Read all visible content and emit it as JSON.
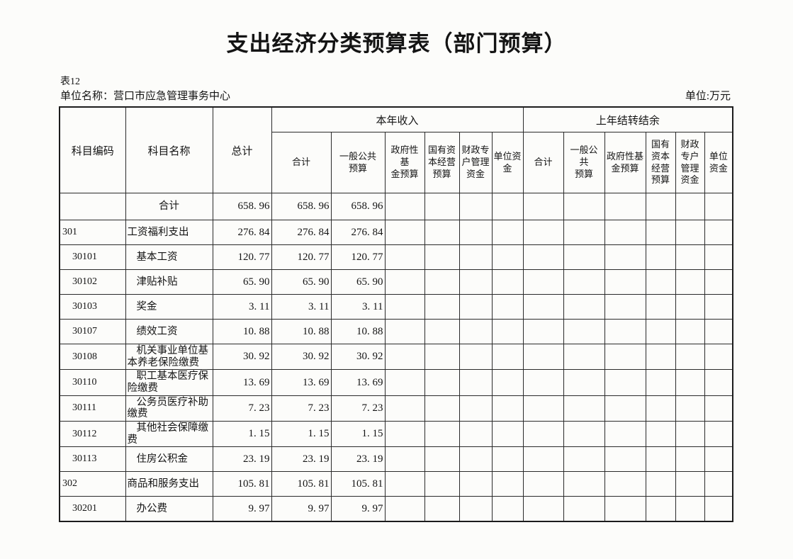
{
  "doc": {
    "title": "支出经济分类预算表（部门预算）",
    "table_no": "表12",
    "unit_name": "单位名称：营口市应急管理事务中心",
    "unit": "单位:万元"
  },
  "table": {
    "columns": {
      "subject_code": "科目编码",
      "subject_name": "科目名称",
      "grand_total": "总计"
    },
    "groups": [
      {
        "label": "本年收入",
        "columns": [
          "合计",
          "一般公共\n预算",
          "政府性基\n金预算",
          "国有资\n本经营\n预算",
          "财政专\n户管理\n资金",
          "单位资\n金"
        ]
      },
      {
        "label": "上年结转结余",
        "columns": [
          "合计",
          "一般公\n共\n预算",
          "政府性基\n金预算",
          "国有\n资本\n经营\n预算",
          "财政\n专户\n管理\n资金",
          "单位\n资金"
        ]
      }
    ],
    "rows": [
      {
        "code": "",
        "name": "合计",
        "level": "total",
        "values": [
          "658. 96",
          "658. 96",
          "658. 96",
          "",
          "",
          "",
          "",
          "",
          "",
          "",
          "",
          "",
          ""
        ]
      },
      {
        "code": "301",
        "name": "工资福利支出",
        "level": "category",
        "values": [
          "276. 84",
          "276. 84",
          "276. 84",
          "",
          "",
          "",
          "",
          "",
          "",
          "",
          "",
          "",
          ""
        ]
      },
      {
        "code": "30101",
        "name": "基本工资",
        "level": "item",
        "values": [
          "120. 77",
          "120. 77",
          "120. 77",
          "",
          "",
          "",
          "",
          "",
          "",
          "",
          "",
          "",
          ""
        ]
      },
      {
        "code": "30102",
        "name": "津贴补贴",
        "level": "item",
        "values": [
          "65. 90",
          "65. 90",
          "65. 90",
          "",
          "",
          "",
          "",
          "",
          "",
          "",
          "",
          "",
          ""
        ]
      },
      {
        "code": "30103",
        "name": "奖金",
        "level": "item",
        "values": [
          "3. 11",
          "3. 11",
          "3. 11",
          "",
          "",
          "",
          "",
          "",
          "",
          "",
          "",
          "",
          ""
        ]
      },
      {
        "code": "30107",
        "name": "绩效工资",
        "level": "item",
        "values": [
          "10. 88",
          "10. 88",
          "10. 88",
          "",
          "",
          "",
          "",
          "",
          "",
          "",
          "",
          "",
          ""
        ]
      },
      {
        "code": "30108",
        "name": "机关事业单位基本养老保险缴费",
        "level": "item",
        "values": [
          "30. 92",
          "30. 92",
          "30. 92",
          "",
          "",
          "",
          "",
          "",
          "",
          "",
          "",
          "",
          ""
        ]
      },
      {
        "code": "30110",
        "name": "职工基本医疗保险缴费",
        "level": "item",
        "values": [
          "13. 69",
          "13. 69",
          "13. 69",
          "",
          "",
          "",
          "",
          "",
          "",
          "",
          "",
          "",
          ""
        ]
      },
      {
        "code": "30111",
        "name": "公务员医疗补助缴费",
        "level": "item",
        "values": [
          "7. 23",
          "7. 23",
          "7. 23",
          "",
          "",
          "",
          "",
          "",
          "",
          "",
          "",
          "",
          ""
        ]
      },
      {
        "code": "30112",
        "name": "其他社会保障缴费",
        "level": "item",
        "values": [
          "1. 15",
          "1. 15",
          "1. 15",
          "",
          "",
          "",
          "",
          "",
          "",
          "",
          "",
          "",
          ""
        ]
      },
      {
        "code": "30113",
        "name": "住房公积金",
        "level": "item",
        "values": [
          "23. 19",
          "23. 19",
          "23. 19",
          "",
          "",
          "",
          "",
          "",
          "",
          "",
          "",
          "",
          ""
        ]
      },
      {
        "code": "302",
        "name": "商品和服务支出",
        "level": "category",
        "values": [
          "105. 81",
          "105. 81",
          "105. 81",
          "",
          "",
          "",
          "",
          "",
          "",
          "",
          "",
          "",
          ""
        ]
      },
      {
        "code": "30201",
        "name": "办公费",
        "level": "item",
        "values": [
          "9. 97",
          "9. 97",
          "9. 97",
          "",
          "",
          "",
          "",
          "",
          "",
          "",
          "",
          "",
          ""
        ]
      }
    ]
  }
}
